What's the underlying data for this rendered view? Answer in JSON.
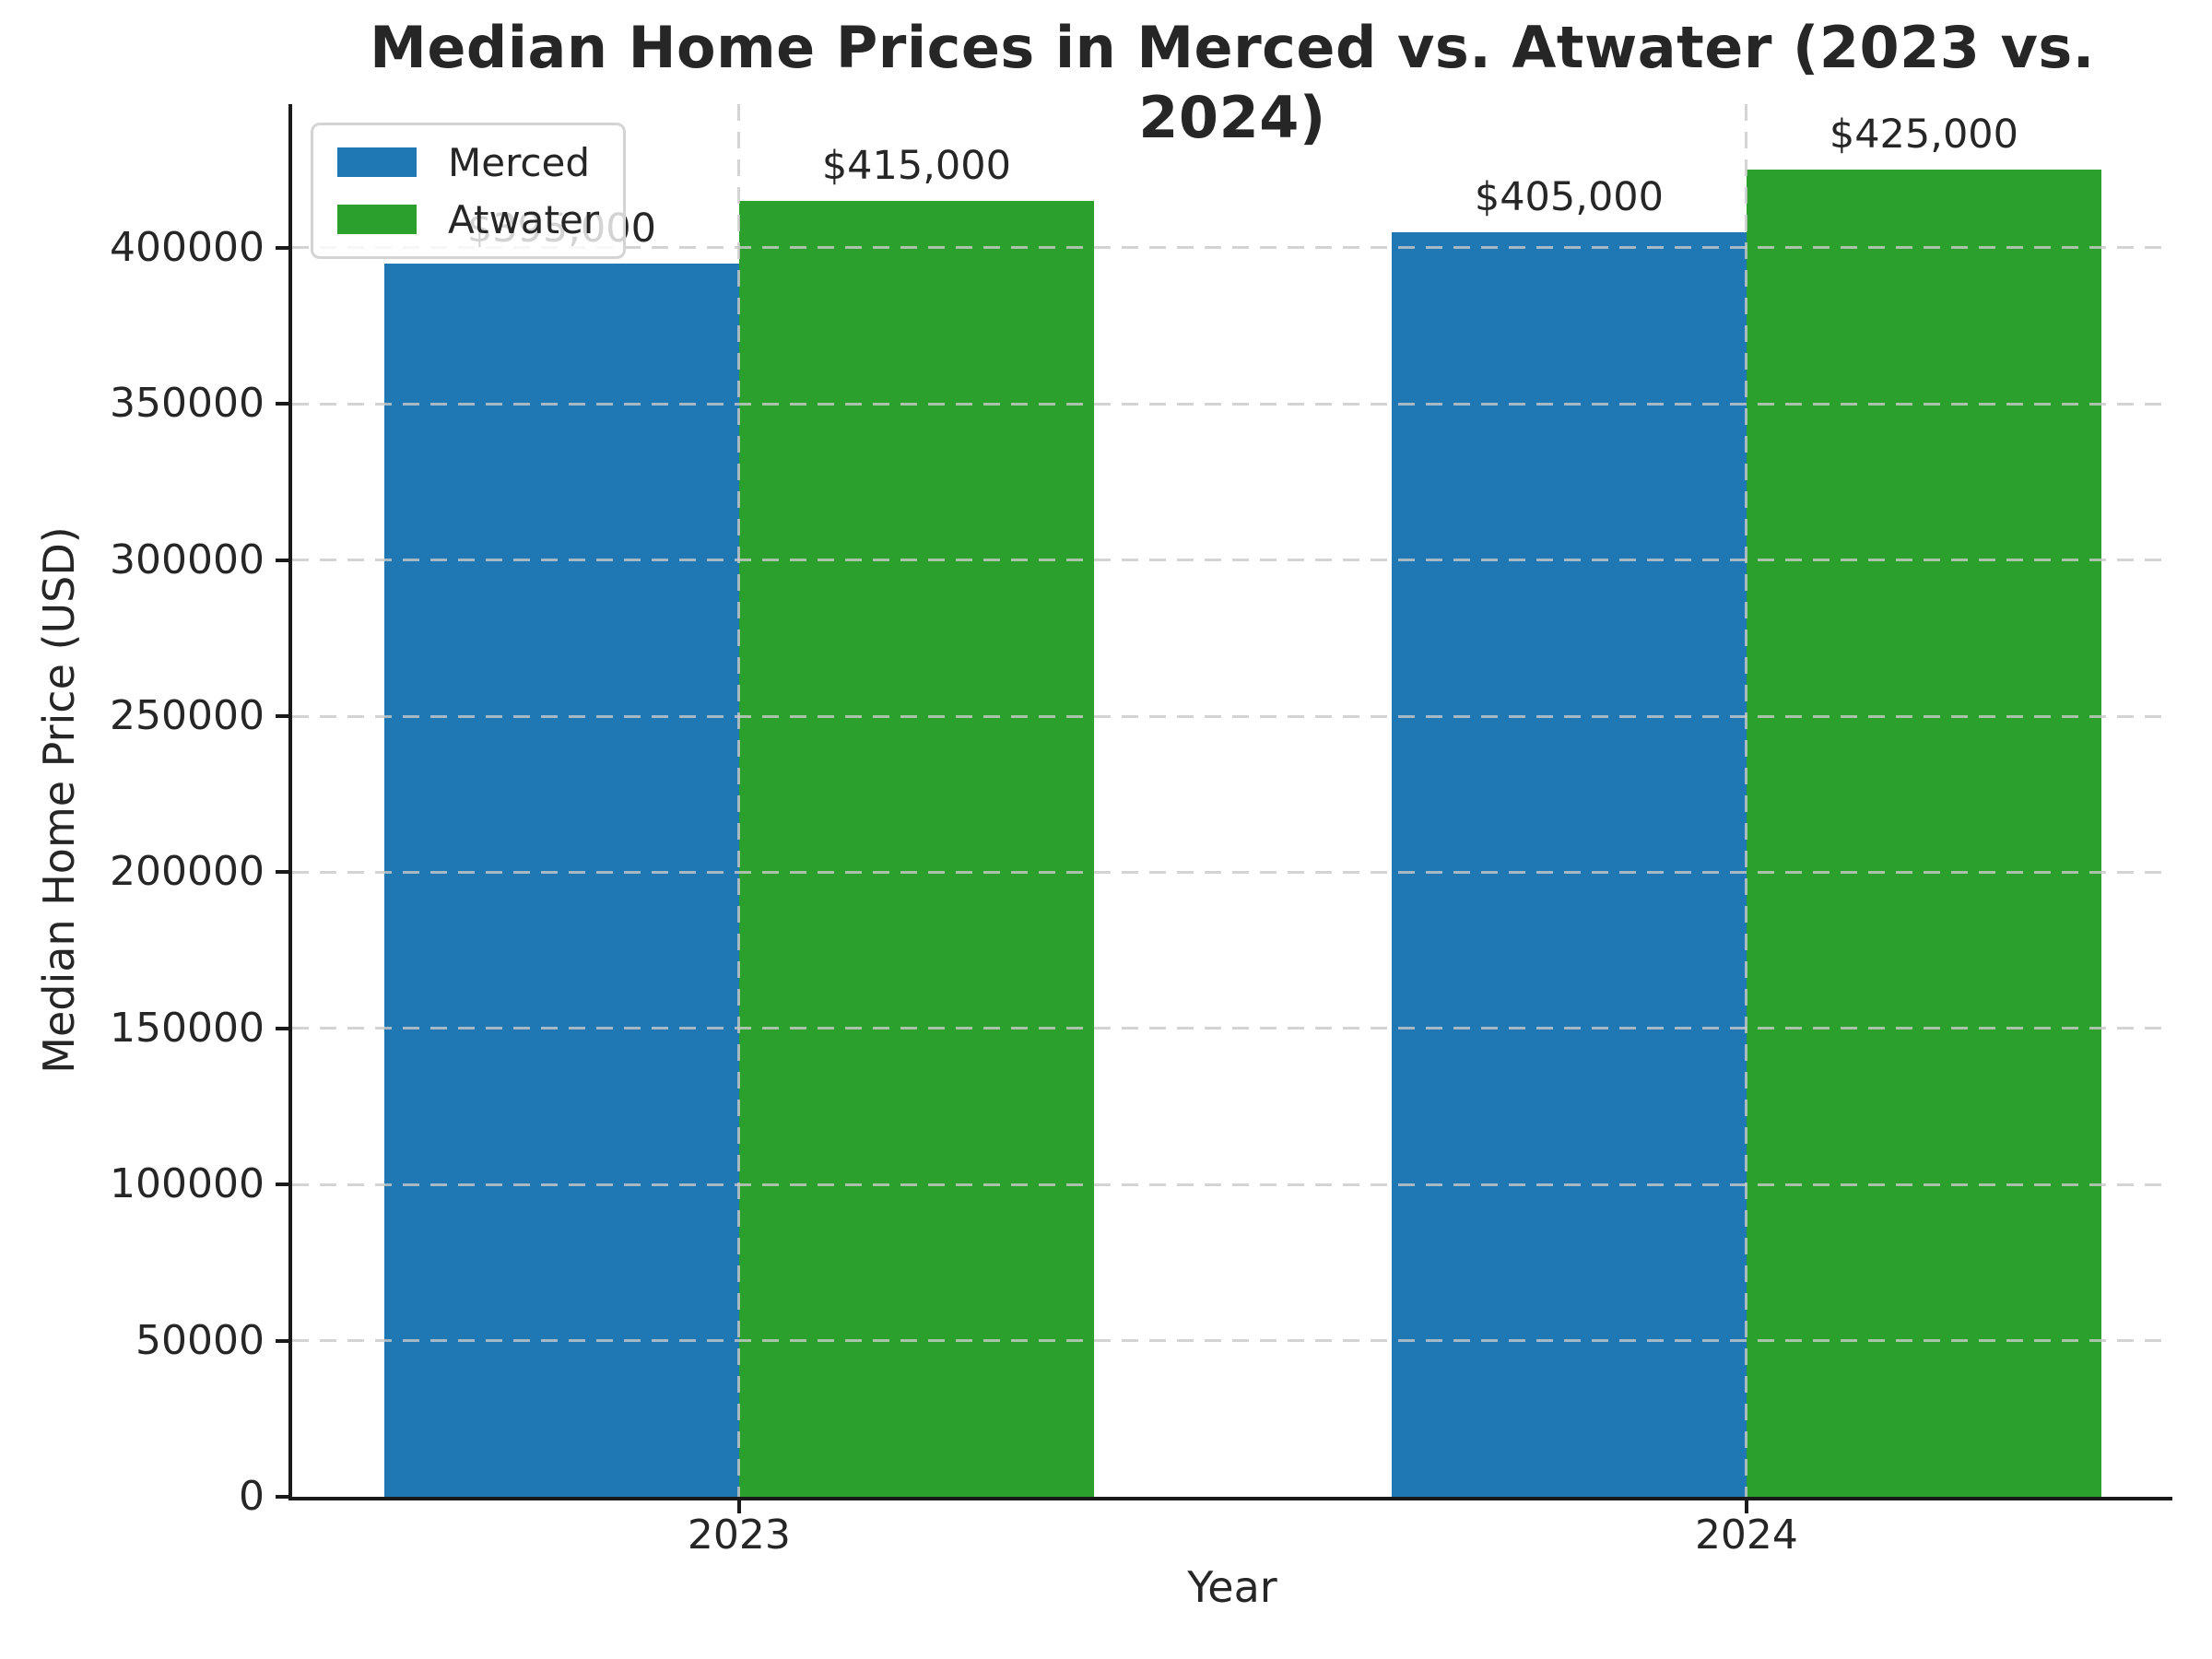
{
  "chart_data": {
    "type": "bar",
    "title": "Median Home Prices in Merced vs. Atwater (2023 vs. 2024)",
    "xlabel": "Year",
    "ylabel": "Median Home Price (USD)",
    "categories": [
      "2023",
      "2024"
    ],
    "series": [
      {
        "name": "Merced",
        "color": "#1f77b4",
        "values": [
          395000,
          405000
        ],
        "labels": [
          "$395,000",
          "$405,000"
        ]
      },
      {
        "name": "Atwater",
        "color": "#2ca02c",
        "values": [
          415000,
          425000
        ],
        "labels": [
          "$415,000",
          "$425,000"
        ]
      }
    ],
    "ylim": [
      0,
      446000
    ],
    "yticks": [
      0,
      50000,
      100000,
      150000,
      200000,
      250000,
      300000,
      350000,
      400000
    ],
    "ytick_labels": [
      "0",
      "50000",
      "100000",
      "150000",
      "200000",
      "250000",
      "300000",
      "350000",
      "400000"
    ],
    "grid": true,
    "grid_style": "dashed",
    "legend_position": "upper-left",
    "colors": {
      "text": "#262626",
      "grid": "#c9c9c9",
      "spine": "#1a1a1a",
      "legend_border": "#d4d4d4"
    }
  }
}
